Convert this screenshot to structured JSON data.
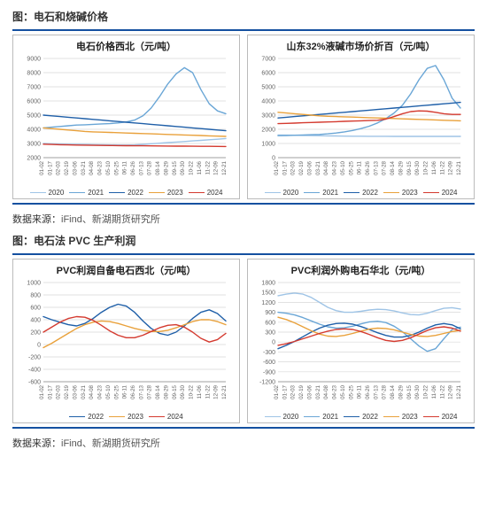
{
  "section1": {
    "title": "图：电石和烧碱价格"
  },
  "section2": {
    "title": "图：电石法 PVC 生产利润"
  },
  "source": {
    "label": "数据来源：",
    "value": "iFind、新湖期货研究所"
  },
  "colors": {
    "hr": "#1450a0",
    "panel_border": "#bbbbbb",
    "grid": "#d9d9d9",
    "axis": "#888888",
    "tick_text": "#666666",
    "y2020": "#9fc4e6",
    "y2021": "#6aa6d6",
    "y2022": "#1f5fa8",
    "y2023": "#e9a13b",
    "y2024": "#d43a2f"
  },
  "x_labels": [
    "01-02",
    "01-17",
    "02-03",
    "02-19",
    "03-06",
    "03-21",
    "04-08",
    "04-23",
    "05-10",
    "05-25",
    "06-11",
    "06-26",
    "07-13",
    "07-28",
    "08-14",
    "08-29",
    "09-15",
    "09-30",
    "10-22",
    "11-06",
    "11-22",
    "12-09",
    "12-21"
  ],
  "charts": {
    "c1": {
      "title": "电石价格西北（元/吨）",
      "type": "line",
      "ylim": [
        2000,
        9000
      ],
      "ytick_step": 1000,
      "legend_years": [
        "2020",
        "2021",
        "2022",
        "2023",
        "2024"
      ],
      "series": {
        "2020": [
          3000,
          2980,
          2960,
          2950,
          2940,
          2930,
          2920,
          2910,
          2900,
          2895,
          2890,
          2900,
          2940,
          2980,
          3020,
          3060,
          3100,
          3140,
          3180,
          3220,
          3260,
          3300,
          3350
        ],
        "2021": [
          4100,
          4150,
          4200,
          4250,
          4300,
          4320,
          4350,
          4380,
          4400,
          4450,
          4520,
          4650,
          4950,
          5500,
          6300,
          7200,
          7900,
          8350,
          8000,
          6800,
          5800,
          5300,
          5100
        ],
        "2022": [
          5000,
          4950,
          4900,
          4850,
          4800,
          4750,
          4700,
          4650,
          4600,
          4550,
          4500,
          4450,
          4400,
          4350,
          4300,
          4250,
          4200,
          4150,
          4100,
          4050,
          4000,
          3950,
          3900
        ],
        "2023": [
          4100,
          4050,
          4000,
          3950,
          3900,
          3850,
          3820,
          3800,
          3780,
          3760,
          3740,
          3720,
          3700,
          3680,
          3660,
          3640,
          3620,
          3600,
          3580,
          3560,
          3540,
          3520,
          3500
        ],
        "2024": [
          2950,
          2930,
          2910,
          2900,
          2890,
          2880,
          2870,
          2860,
          2855,
          2850,
          2845,
          2840,
          2835,
          2830,
          2825,
          2820,
          2815,
          2810,
          2805,
          2800,
          2798,
          2795,
          2790
        ]
      }
    },
    "c2": {
      "title": "山东32%液碱市场价折百（元/吨）",
      "type": "line",
      "ylim": [
        0,
        7000
      ],
      "ytick_step": 1000,
      "legend_years": [
        "2020",
        "2021",
        "2022",
        "2023",
        "2024"
      ],
      "series": {
        "2020": [
          1600,
          1590,
          1580,
          1570,
          1560,
          1550,
          1540,
          1530,
          1520,
          1515,
          1510,
          1508,
          1506,
          1504,
          1502,
          1500,
          1500,
          1500,
          1500,
          1500,
          1500,
          1500,
          1500
        ],
        "2021": [
          1550,
          1560,
          1580,
          1600,
          1620,
          1640,
          1680,
          1740,
          1820,
          1920,
          2050,
          2220,
          2450,
          2750,
          3150,
          3700,
          4500,
          5500,
          6300,
          6500,
          5500,
          4200,
          3500
        ],
        "2022": [
          2800,
          2850,
          2900,
          2950,
          3000,
          3050,
          3100,
          3150,
          3200,
          3250,
          3300,
          3350,
          3400,
          3450,
          3500,
          3550,
          3600,
          3650,
          3700,
          3750,
          3800,
          3850,
          3900
        ],
        "2023": [
          3200,
          3150,
          3100,
          3050,
          3000,
          2950,
          2920,
          2900,
          2880,
          2860,
          2840,
          2820,
          2800,
          2780,
          2760,
          2740,
          2720,
          2700,
          2680,
          2660,
          2640,
          2620,
          2600
        ],
        "2024": [
          2400,
          2420,
          2440,
          2460,
          2480,
          2500,
          2520,
          2540,
          2560,
          2580,
          2600,
          2620,
          2640,
          2720,
          2900,
          3100,
          3250,
          3300,
          3280,
          3200,
          3100,
          3050,
          3050
        ]
      }
    },
    "c3": {
      "title": "PVC利润自备电石西北（元/吨）",
      "type": "line",
      "ylim": [
        -600,
        1000
      ],
      "ytick_step": 200,
      "legend_years": [
        "2022",
        "2023",
        "2024"
      ],
      "series": {
        "2022": [
          450,
          400,
          360,
          320,
          300,
          340,
          420,
          520,
          600,
          650,
          620,
          520,
          380,
          260,
          180,
          150,
          200,
          300,
          420,
          520,
          560,
          500,
          380
        ],
        "2023": [
          -50,
          20,
          100,
          180,
          260,
          320,
          360,
          380,
          370,
          340,
          300,
          260,
          230,
          210,
          210,
          230,
          270,
          320,
          370,
          400,
          400,
          370,
          320
        ],
        "2024": [
          200,
          280,
          360,
          420,
          450,
          440,
          390,
          310,
          220,
          150,
          110,
          110,
          150,
          210,
          270,
          310,
          320,
          280,
          200,
          100,
          40,
          80,
          180
        ]
      }
    },
    "c4": {
      "title": "PVC利润外购电石华北（元/吨）",
      "type": "line",
      "ylim": [
        -1200,
        1800
      ],
      "ytick_step": 300,
      "legend_years": [
        "2020",
        "2021",
        "2022",
        "2023",
        "2024"
      ],
      "series": {
        "2020": [
          1400,
          1450,
          1480,
          1450,
          1350,
          1200,
          1050,
          950,
          900,
          900,
          930,
          970,
          990,
          980,
          940,
          880,
          830,
          820,
          870,
          950,
          1020,
          1040,
          1000
        ],
        "2021": [
          900,
          870,
          820,
          740,
          640,
          540,
          460,
          420,
          430,
          480,
          550,
          610,
          630,
          590,
          480,
          310,
          100,
          -120,
          -280,
          -200,
          100,
          380,
          450
        ],
        "2022": [
          -200,
          -100,
          20,
          160,
          300,
          420,
          510,
          560,
          570,
          540,
          470,
          380,
          280,
          200,
          150,
          150,
          200,
          300,
          420,
          520,
          560,
          520,
          400
        ],
        "2023": [
          750,
          680,
          580,
          460,
          340,
          240,
          180,
          170,
          200,
          260,
          330,
          390,
          420,
          410,
          370,
          300,
          230,
          180,
          170,
          200,
          260,
          320,
          350
        ],
        "2024": [
          -100,
          -50,
          20,
          100,
          180,
          260,
          330,
          380,
          400,
          380,
          320,
          230,
          130,
          50,
          20,
          50,
          130,
          240,
          350,
          430,
          460,
          420,
          330
        ]
      }
    }
  }
}
